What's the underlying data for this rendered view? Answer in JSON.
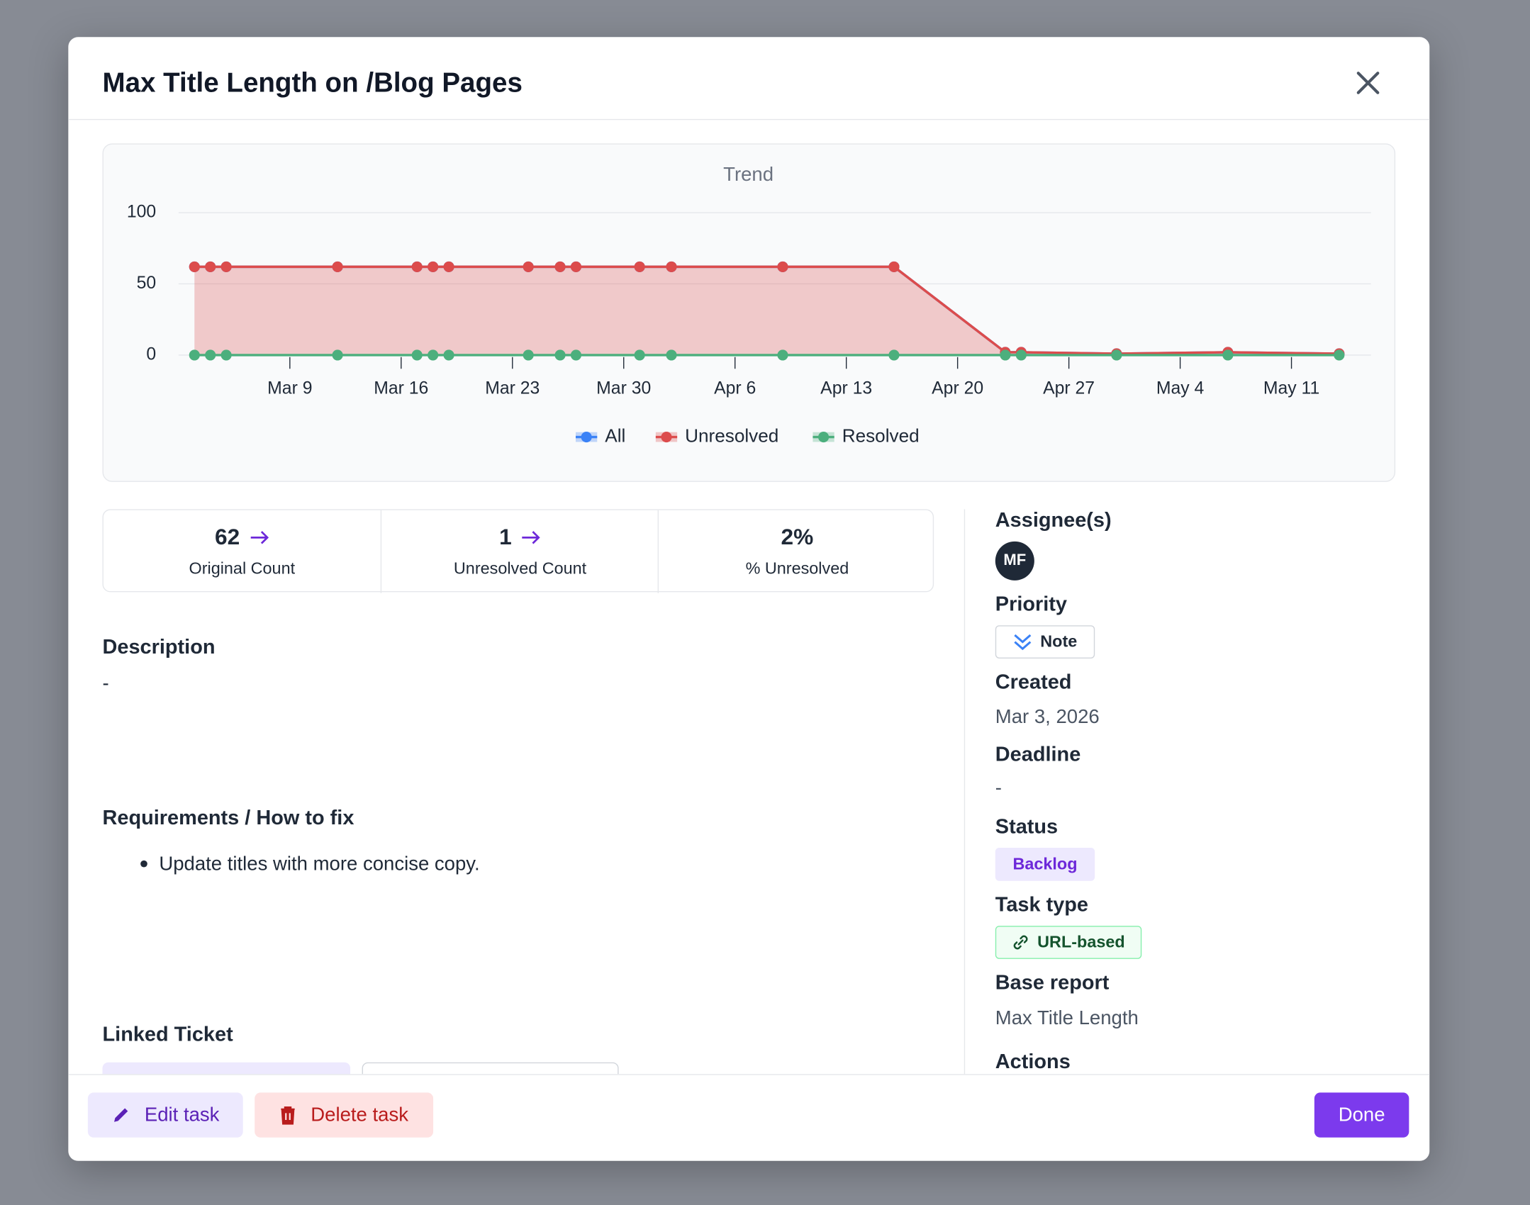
{
  "modal": {
    "title": "Max Title Length on /Blog Pages"
  },
  "chart_data": {
    "type": "line",
    "title": "Trend",
    "x": [
      "Mar 3",
      "Mar 4",
      "Mar 5",
      "Mar 12",
      "Mar 17",
      "Mar 18",
      "Mar 19",
      "Mar 24",
      "Mar 26",
      "Mar 27",
      "Mar 31",
      "Apr 2",
      "Apr 9",
      "Apr 16",
      "Apr 23",
      "Apr 24",
      "Apr 30",
      "May 7",
      "May 14"
    ],
    "series": [
      {
        "name": "All",
        "color": "#3b82f6",
        "area": false,
        "values": [
          62,
          62,
          62,
          62,
          62,
          62,
          62,
          62,
          62,
          62,
          62,
          62,
          62,
          62,
          2,
          2,
          1,
          2,
          1
        ]
      },
      {
        "name": "Unresolved",
        "color": "#dc4c4c",
        "area": true,
        "values": [
          62,
          62,
          62,
          62,
          62,
          62,
          62,
          62,
          62,
          62,
          62,
          62,
          62,
          62,
          2,
          2,
          1,
          2,
          1
        ]
      },
      {
        "name": "Resolved",
        "color": "#4caf7d",
        "area": false,
        "values": [
          0,
          0,
          0,
          0,
          0,
          0,
          0,
          0,
          0,
          0,
          0,
          0,
          0,
          0,
          0,
          0,
          0,
          0,
          0
        ]
      }
    ],
    "xlim": [
      "Mar 2",
      "May 16"
    ],
    "xticks": [
      "Mar 9",
      "Mar 16",
      "Mar 23",
      "Mar 30",
      "Apr 6",
      "Apr 13",
      "Apr 20",
      "Apr 27",
      "May 4",
      "May 11"
    ],
    "ylim": [
      0,
      100
    ],
    "yticks": [
      0,
      50,
      100
    ],
    "grid": true,
    "legend": "bottom"
  },
  "stats": [
    {
      "value": "62",
      "label": "Original Count"
    },
    {
      "value": "1",
      "label": "Unresolved Count"
    },
    {
      "value": "2%",
      "label": "% Unresolved"
    }
  ],
  "description": {
    "heading": "Description",
    "text": "-"
  },
  "requirements": {
    "heading": "Requirements / How to fix",
    "items": [
      "Update titles with more concise copy."
    ]
  },
  "linked_ticket": {
    "heading": "Linked Ticket"
  },
  "sidebar": {
    "assignees_label": "Assignee(s)",
    "assignee_initials": "MF",
    "priority_label": "Priority",
    "priority": "Note",
    "created_label": "Created",
    "created": "Mar 3, 2026",
    "deadline_label": "Deadline",
    "deadline": "-",
    "status_label": "Status",
    "status": "Backlog",
    "task_type_label": "Task type",
    "task_type": "URL-based",
    "base_report_label": "Base report",
    "base_report": "Max Title Length",
    "actions_label": "Actions"
  },
  "footer": {
    "edit": "Edit task",
    "delete": "Delete task",
    "done": "Done"
  }
}
